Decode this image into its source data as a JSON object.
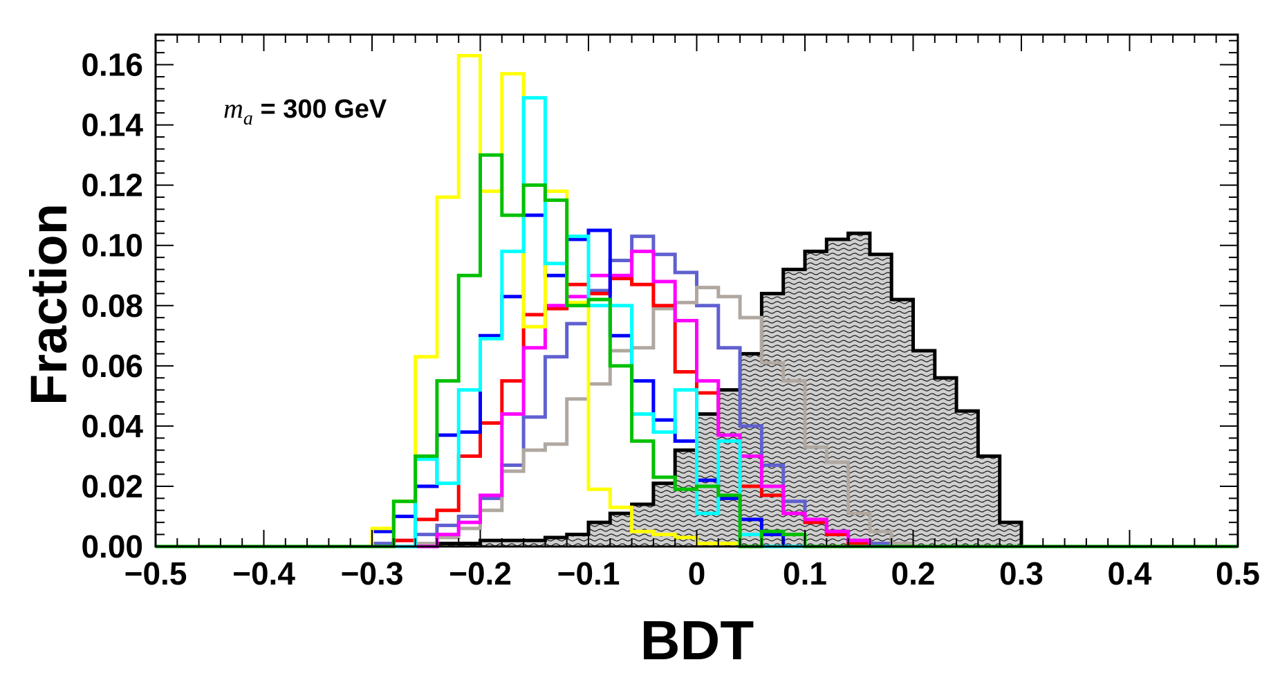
{
  "chart_data": {
    "type": "histogram-step",
    "xlabel": "BDT",
    "ylabel": "Fraction",
    "annotation": {
      "symbol": "m",
      "subscript": "a",
      "text": "= 300 GeV"
    },
    "xlim": [
      -0.5,
      0.5
    ],
    "ylim": [
      0,
      0.17
    ],
    "x_ticks": [
      "−0.5",
      "−0.4",
      "−0.3",
      "−0.2",
      "−0.1",
      "0",
      "0.1",
      "0.2",
      "0.3",
      "0.4",
      "0.5"
    ],
    "x_tick_values": [
      -0.5,
      -0.4,
      -0.3,
      -0.2,
      -0.1,
      0,
      0.1,
      0.2,
      0.3,
      0.4,
      0.5
    ],
    "y_ticks": [
      "0.00",
      "0.02",
      "0.04",
      "0.06",
      "0.08",
      "0.10",
      "0.12",
      "0.14",
      "0.16"
    ],
    "y_tick_values": [
      0,
      0.02,
      0.04,
      0.06,
      0.08,
      0.1,
      0.12,
      0.14,
      0.16
    ],
    "grid": false,
    "legend": "none",
    "bin_edges_start": -0.5,
    "bin_width": 0.02,
    "series": [
      {
        "color": "#ffff00",
        "filled": false,
        "range": [
          -0.3,
          0.06
        ],
        "values": [
          0.006,
          0.015,
          0.063,
          0.116,
          0.163,
          0.118,
          0.157,
          0.073,
          0.118,
          0.081,
          0.019,
          0.013,
          0.005,
          0.004,
          0.003,
          0.001,
          0.001,
          0.0
        ]
      },
      {
        "color": "#0000ff",
        "filled": false,
        "range": [
          -0.3,
          0.08
        ],
        "values": [
          0.005,
          0.01,
          0.02,
          0.037,
          0.038,
          0.07,
          0.083,
          0.11,
          0.09,
          0.102,
          0.105,
          0.07,
          0.055,
          0.042,
          0.035,
          0.022,
          0.016,
          0.009,
          0.004
        ]
      },
      {
        "color": "#ff0000",
        "filled": false,
        "range": [
          -0.28,
          0.16
        ],
        "values": [
          0.002,
          0.009,
          0.012,
          0.03,
          0.041,
          0.055,
          0.077,
          0.079,
          0.087,
          0.084,
          0.089,
          0.087,
          0.08,
          0.058,
          0.051,
          0.037,
          0.02,
          0.017,
          0.011,
          0.008,
          0.004,
          0.001
        ]
      },
      {
        "color": "#ff00ff",
        "filled": false,
        "range": [
          -0.24,
          0.16
        ],
        "values": [
          0.004,
          0.008,
          0.017,
          0.044,
          0.066,
          0.08,
          0.083,
          0.09,
          0.09,
          0.098,
          0.088,
          0.075,
          0.055,
          0.037,
          0.03,
          0.02,
          0.011,
          0.009,
          0.005,
          0.002
        ]
      },
      {
        "color": "#00ffff",
        "filled": false,
        "range": [
          -0.26,
          0.1
        ],
        "values": [
          0.029,
          0.021,
          0.052,
          0.069,
          0.098,
          0.149,
          0.094,
          0.103,
          0.08,
          0.08,
          0.044,
          0.038,
          0.052,
          0.011,
          0.035,
          0.004,
          0.0,
          0.0
        ]
      },
      {
        "color": "#00c000",
        "filled": false,
        "range": [
          -0.28,
          0.1
        ],
        "values": [
          0.015,
          0.03,
          0.055,
          0.09,
          0.13,
          0.11,
          0.12,
          0.115,
          0.08,
          0.082,
          0.06,
          0.035,
          0.023,
          0.019,
          0.02,
          0.017,
          0.0,
          0.005,
          0.004
        ]
      },
      {
        "color": "#6060d0",
        "filled": false,
        "range": [
          -0.3,
          0.2
        ],
        "values": [
          0.001,
          0.002,
          0.004,
          0.007,
          0.01,
          0.016,
          0.027,
          0.043,
          0.063,
          0.074,
          0.085,
          0.095,
          0.103,
          0.097,
          0.091,
          0.08,
          0.066,
          0.04,
          0.027,
          0.015,
          0.008,
          0.005,
          0.002,
          0.001,
          0.0
        ]
      },
      {
        "color": "#b0a8a0",
        "filled": false,
        "range": [
          -0.26,
          0.2
        ],
        "values": [
          0.001,
          0.003,
          0.006,
          0.012,
          0.025,
          0.032,
          0.034,
          0.049,
          0.054,
          0.065,
          0.066,
          0.079,
          0.081,
          0.086,
          0.083,
          0.076,
          0.061,
          0.055,
          0.033,
          0.028,
          0.011,
          0.005,
          0.001
        ]
      },
      {
        "color": "#000000",
        "filled": true,
        "range": [
          -0.26,
          0.3
        ],
        "values": [
          0.0,
          0.001,
          0.001,
          0.002,
          0.002,
          0.002,
          0.003,
          0.004,
          0.008,
          0.011,
          0.014,
          0.021,
          0.032,
          0.044,
          0.052,
          0.064,
          0.084,
          0.092,
          0.098,
          0.102,
          0.104,
          0.097,
          0.082,
          0.065,
          0.056,
          0.045,
          0.03,
          0.008
        ]
      }
    ]
  }
}
